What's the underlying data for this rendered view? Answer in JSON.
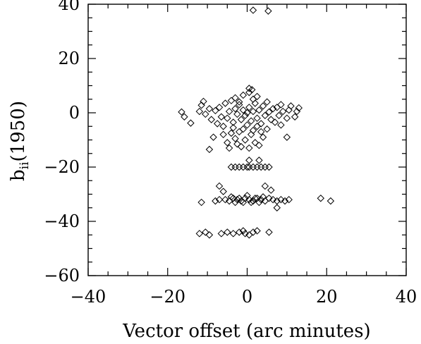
{
  "chart_data": {
    "type": "scatter",
    "title": "",
    "xlabel": "Vector offset (arc minutes)",
    "ylabel": {
      "main": "b",
      "sub": "ii",
      "rest": "(1950)"
    },
    "xlim": [
      -40,
      40
    ],
    "ylim": [
      -60,
      40
    ],
    "x_ticks": [
      -40,
      -20,
      0,
      20,
      40
    ],
    "x_tick_labels": [
      "−40",
      "−20",
      "0",
      "20",
      "40"
    ],
    "y_ticks": [
      -60,
      -40,
      -20,
      0,
      20,
      40
    ],
    "y_tick_labels": [
      "−60",
      "−40",
      "−20",
      "0",
      "20",
      "40"
    ],
    "x_minor_step": 5,
    "y_minor_step": 5,
    "marker": "open-diamond",
    "grid": false,
    "series": [
      {
        "points": [
          [
            1.5,
            37.8
          ],
          [
            5.3,
            37.5
          ],
          [
            -16.5,
            0.3
          ],
          [
            -15.8,
            -1.5
          ],
          [
            -14.2,
            -3.8
          ],
          [
            -12,
            0.5
          ],
          [
            -11.5,
            2.8
          ],
          [
            -11,
            4.2
          ],
          [
            -10.5,
            -0.5
          ],
          [
            -9.5,
            1.5
          ],
          [
            -9,
            -2.5
          ],
          [
            -8,
            0.8
          ],
          [
            -7.5,
            -4
          ],
          [
            -7,
            2
          ],
          [
            -6.5,
            -1.5
          ],
          [
            -6,
            -5
          ],
          [
            -5.5,
            3.5
          ],
          [
            -5,
            -2
          ],
          [
            -4.5,
            0.5
          ],
          [
            -4,
            4.5
          ],
          [
            -3.5,
            -3.5
          ],
          [
            -3,
            1.5
          ],
          [
            -2.5,
            -0.5
          ],
          [
            -2,
            3
          ],
          [
            -1.5,
            -2.5
          ],
          [
            -1,
            1
          ],
          [
            -0.5,
            -1
          ],
          [
            0,
            0
          ],
          [
            0.5,
            2
          ],
          [
            1,
            -3
          ],
          [
            1.5,
            0.5
          ],
          [
            2,
            3.5
          ],
          [
            2.5,
            -2
          ],
          [
            3,
            1
          ],
          [
            3.5,
            -4
          ],
          [
            4,
            2.5
          ],
          [
            4.5,
            -1
          ],
          [
            5,
            4
          ],
          [
            5.5,
            0.3
          ],
          [
            6,
            -2.5
          ],
          [
            6.5,
            1.5
          ],
          [
            7,
            -3.5
          ],
          [
            7.5,
            2
          ],
          [
            8,
            -1
          ],
          [
            8.5,
            3
          ],
          [
            9,
            0.5
          ],
          [
            10,
            -2
          ],
          [
            10.5,
            1
          ],
          [
            11,
            2.5
          ],
          [
            12,
            -1.5
          ],
          [
            12.5,
            0.5
          ],
          [
            13,
            1.8
          ],
          [
            10,
            -9
          ],
          [
            8.5,
            -4.5
          ],
          [
            -9.5,
            -13.5
          ],
          [
            -8.5,
            -9
          ],
          [
            -3,
            5.5
          ],
          [
            -1,
            6.5
          ],
          [
            0.5,
            7.5
          ],
          [
            1.5,
            5
          ],
          [
            -2,
            4
          ],
          [
            2.5,
            6
          ],
          [
            0.5,
            9
          ],
          [
            1.2,
            8.5
          ],
          [
            -4,
            -7.5
          ],
          [
            -3,
            -9.5
          ],
          [
            -2.5,
            -11.5
          ],
          [
            -1.5,
            -12.5
          ],
          [
            -0.5,
            -10
          ],
          [
            0.5,
            -13
          ],
          [
            1,
            -8
          ],
          [
            2,
            -11
          ],
          [
            3,
            -12
          ],
          [
            4,
            -9
          ],
          [
            -5,
            -11
          ],
          [
            -4.5,
            -13
          ],
          [
            5,
            -6
          ],
          [
            -6,
            -8
          ],
          [
            -1,
            -6
          ],
          [
            0,
            -4.5
          ],
          [
            1.5,
            -6.5
          ],
          [
            -2,
            -7
          ],
          [
            2.5,
            -5
          ],
          [
            3.5,
            -7
          ],
          [
            -3.5,
            -5.5
          ],
          [
            0.5,
            -17.5
          ],
          [
            3,
            -17.5
          ],
          [
            -4,
            -20
          ],
          [
            -3,
            -20
          ],
          [
            -2,
            -20
          ],
          [
            -1,
            -20
          ],
          [
            0,
            -20
          ],
          [
            0.5,
            -20
          ],
          [
            1.5,
            -20
          ],
          [
            2.5,
            -20
          ],
          [
            3.5,
            -20
          ],
          [
            4.5,
            -20
          ],
          [
            5.5,
            -20
          ],
          [
            -7,
            -27
          ],
          [
            -6,
            -29
          ],
          [
            4.5,
            -27
          ],
          [
            6,
            -28.5
          ],
          [
            -11.5,
            -33
          ],
          [
            -8,
            -32.5
          ],
          [
            -7,
            -32
          ],
          [
            -5.5,
            -32
          ],
          [
            -4.5,
            -32.5
          ],
          [
            -3.5,
            -31.5
          ],
          [
            -2.5,
            -32
          ],
          [
            -1.5,
            -32.5
          ],
          [
            -0.5,
            -31.5
          ],
          [
            0.5,
            -32
          ],
          [
            1.5,
            -32.5
          ],
          [
            2.5,
            -31.5
          ],
          [
            3.5,
            -32
          ],
          [
            4.5,
            -32.5
          ],
          [
            5.5,
            -31.5
          ],
          [
            6.5,
            -32
          ],
          [
            7.5,
            -32.5
          ],
          [
            8.5,
            -32
          ],
          [
            9.5,
            -32.5
          ],
          [
            10.5,
            -32
          ],
          [
            -1,
            -33
          ],
          [
            1,
            -33
          ],
          [
            -3,
            -33
          ],
          [
            3,
            -33
          ],
          [
            -2,
            -31.5
          ],
          [
            2,
            -31.5
          ],
          [
            0,
            -30.5
          ],
          [
            -4,
            -31
          ],
          [
            4,
            -31
          ],
          [
            7.5,
            -35
          ],
          [
            18.5,
            -31.5
          ],
          [
            21,
            -32.5
          ],
          [
            -12,
            -44.5
          ],
          [
            -10.5,
            -44
          ],
          [
            -9.5,
            -45
          ],
          [
            -6.5,
            -44.5
          ],
          [
            -5,
            -44
          ],
          [
            -3.5,
            -44.5
          ],
          [
            -2,
            -44
          ],
          [
            -1,
            -43.5
          ],
          [
            -0.5,
            -44.5
          ],
          [
            0.5,
            -45
          ],
          [
            1.5,
            -44
          ],
          [
            2.5,
            -43.5
          ],
          [
            5.5,
            -44
          ]
        ]
      }
    ]
  }
}
